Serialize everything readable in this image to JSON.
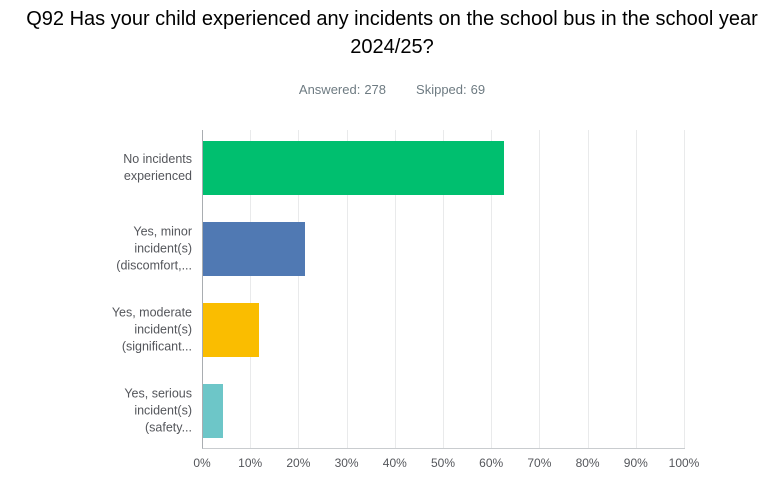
{
  "header": {
    "answered_label": "Answered:",
    "answered_count": "278",
    "skipped_label": "Skipped:",
    "skipped_count": "69"
  },
  "colors": {
    "title_text": "#000000",
    "meta_text": "#6e7b82",
    "label_text": "#54565b",
    "gridline": "#e9eaeb",
    "axis_line": "#a9adb1"
  },
  "chart_data": {
    "type": "bar",
    "orientation": "horizontal",
    "title": "Q92 Has your child experienced any incidents on the school bus in the school year 2024/25?",
    "answered": 278,
    "skipped": 69,
    "categories": [
      "No incidents experienced",
      "Yes, minor incident(s) (discomfort,...",
      "Yes, moderate incident(s) (significant...",
      "Yes, serious incident(s) (safety..."
    ],
    "category_display_lines": [
      [
        "No incidents",
        "experienced"
      ],
      [
        "Yes, minor",
        "incident(s)",
        "(discomfort,..."
      ],
      [
        "Yes, moderate",
        "incident(s)",
        "(significant..."
      ],
      [
        "Yes, serious",
        "incident(s)",
        "(safety..."
      ]
    ],
    "values_percent": [
      62.4,
      21.2,
      11.7,
      4.2
    ],
    "bar_colors": [
      "#00BF6F",
      "#5079B3",
      "#FABD00",
      "#6DC6C8"
    ],
    "xlabel": "",
    "ylabel": "",
    "xlim": [
      0,
      100
    ],
    "x_ticks_percent": [
      0,
      10,
      20,
      30,
      40,
      50,
      60,
      70,
      80,
      90,
      100
    ],
    "x_tick_labels": [
      "0%",
      "10%",
      "20%",
      "30%",
      "40%",
      "50%",
      "60%",
      "70%",
      "80%",
      "90%",
      "100%"
    ],
    "grid": "vertical",
    "legend": "none"
  }
}
